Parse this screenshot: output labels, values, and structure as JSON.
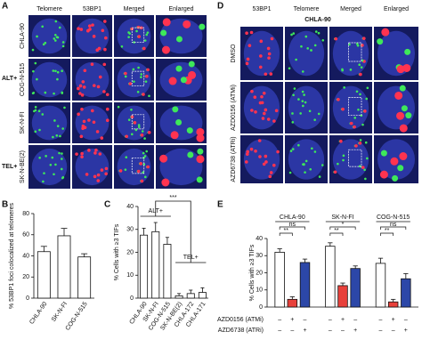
{
  "panels": {
    "A": {
      "letter": "A",
      "columns": [
        "Telomere",
        "53BP1",
        "Merged",
        "Enlarged"
      ],
      "rows": [
        "CHLA-90",
        "COG-N-515",
        "SK-N-FI",
        "SK-N-BE(2)"
      ],
      "groups": [
        "ALT+",
        "TEL+"
      ]
    },
    "D": {
      "letter": "D",
      "title": "CHLA-90",
      "columns": [
        "53BP1",
        "Telomere",
        "Merged",
        "Enlarged"
      ],
      "rows": [
        "DMSO",
        "AZD0156 (ATMi)",
        "AZD6738 (ATRi)"
      ]
    }
  },
  "chart_data": [
    {
      "type": "bar",
      "panel": "B",
      "ylabel": "% 53BP1 foci colocalized at telomeres",
      "categories": [
        "CHLA-90",
        "SK-N-FI",
        "COG-N-515"
      ],
      "values": [
        44,
        59,
        39
      ],
      "errors": [
        5,
        7,
        3
      ],
      "color": "#ffffff",
      "ylim": [
        0,
        80
      ],
      "yticks": [
        0,
        20,
        40,
        60,
        80
      ]
    },
    {
      "type": "bar",
      "panel": "C",
      "ylabel": "% Cells with ≥3 TIFs",
      "categories": [
        "CHLA-90",
        "SK-N-FI",
        "COG-N-515",
        "SK-N-BE(2)",
        "CHLA-172",
        "CHLA-171"
      ],
      "values": [
        27.5,
        29,
        23.5,
        1,
        2,
        2.5
      ],
      "errors": [
        3,
        4,
        3,
        1,
        1.5,
        2
      ],
      "color": "#ffffff",
      "ylim": [
        0,
        40
      ],
      "yticks": [
        0,
        10,
        20,
        30,
        40
      ],
      "annotations": [
        "ALT+",
        "TEL+",
        "***"
      ]
    },
    {
      "type": "grouped-bar",
      "panel": "E",
      "ylabel": "% Cells with ≥3 TIFs",
      "categories": [
        "CHLA-90",
        "SK-N-FI",
        "COG-N-515"
      ],
      "series": [
        {
          "color": "#ffffff",
          "values": [
            32,
            35.5,
            25.5
          ],
          "errors": [
            2,
            2,
            3
          ]
        },
        {
          "color": "#e8403a",
          "values": [
            4.5,
            12.5,
            3
          ],
          "errors": [
            1.5,
            1.5,
            1.5
          ]
        },
        {
          "color": "#2c47a8",
          "values": [
            26,
            22.5,
            16.5
          ],
          "errors": [
            2,
            1.5,
            3
          ]
        }
      ],
      "ylim": [
        0,
        40
      ],
      "yticks": [
        0,
        10,
        20,
        30,
        40
      ],
      "annotations": [
        "**",
        "ns",
        "**",
        "*",
        "**",
        "ns"
      ],
      "treatments": [
        {
          "label": "AZD0156 (ATMi)",
          "signs": [
            "–",
            "+",
            "–",
            "–",
            "+",
            "–",
            "–",
            "+",
            "–"
          ]
        },
        {
          "label": "AZD6738 (ATRi)",
          "signs": [
            "–",
            "–",
            "+",
            "–",
            "–",
            "+",
            "–",
            "–",
            "+"
          ]
        }
      ]
    }
  ]
}
